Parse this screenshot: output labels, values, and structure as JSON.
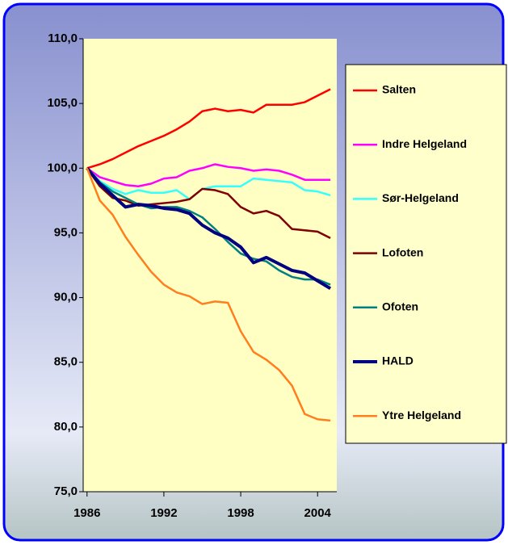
{
  "chart_data": {
    "type": "line",
    "x": [
      1986,
      1987,
      1988,
      1989,
      1990,
      1991,
      1992,
      1993,
      1994,
      1995,
      1996,
      1997,
      1998,
      1999,
      2000,
      2001,
      2002,
      2003,
      2004,
      2005
    ],
    "xlim": [
      1985.7,
      2005.5
    ],
    "xticks": [
      1986,
      1992,
      1998,
      2004
    ],
    "ylim": [
      75,
      110
    ],
    "yticks": [
      {
        "value": 75,
        "label": "75,0"
      },
      {
        "value": 80,
        "label": "80,0"
      },
      {
        "value": 85,
        "label": "85,0"
      },
      {
        "value": 90,
        "label": "90,0"
      },
      {
        "value": 95,
        "label": "95,0"
      },
      {
        "value": 100,
        "label": "100,0"
      },
      {
        "value": 105,
        "label": "105,0"
      },
      {
        "value": 110,
        "label": "110,0"
      }
    ],
    "legend": "right",
    "series": [
      {
        "name": "Salten",
        "color": "#ff0000",
        "values": [
          100,
          100.3,
          100.7,
          101.2,
          101.7,
          102.1,
          102.5,
          103.0,
          103.6,
          104.4,
          104.6,
          104.4,
          104.5,
          104.3,
          104.9,
          104.9,
          104.9,
          105.1,
          105.6,
          106.1
        ]
      },
      {
        "name": "Indre Helgeland",
        "color": "#ff00ff",
        "values": [
          100,
          99.3,
          99.0,
          98.7,
          98.6,
          98.8,
          99.2,
          99.3,
          99.8,
          100.0,
          100.3,
          100.1,
          100.0,
          99.8,
          99.9,
          99.8,
          99.5,
          99.1,
          99.1,
          99.1
        ]
      },
      {
        "name": "Sør-Helgeland",
        "color": "#33ffff",
        "values": [
          100,
          99.0,
          98.4,
          98.0,
          98.3,
          98.1,
          98.1,
          98.3,
          97.6,
          98.4,
          98.6,
          98.6,
          98.6,
          99.2,
          99.1,
          99.0,
          98.9,
          98.3,
          98.2,
          97.9
        ]
      },
      {
        "name": "Lofoten",
        "color": "#800000",
        "values": [
          100,
          98.6,
          97.7,
          97.5,
          97.1,
          97.2,
          97.3,
          97.4,
          97.6,
          98.4,
          98.3,
          98.0,
          97.0,
          96.5,
          96.7,
          96.3,
          95.3,
          95.2,
          95.1,
          94.6
        ]
      },
      {
        "name": "Ofoten",
        "color": "#008080",
        "values": [
          100,
          98.9,
          98.2,
          97.7,
          97.2,
          96.9,
          97.0,
          97.0,
          96.7,
          96.2,
          95.3,
          94.3,
          93.4,
          93.0,
          92.8,
          92.1,
          91.6,
          91.4,
          91.4,
          91.0
        ]
      },
      {
        "name": "HALD",
        "color": "#000080",
        "values": [
          100,
          98.8,
          97.9,
          97.0,
          97.2,
          97.1,
          96.9,
          96.8,
          96.5,
          95.6,
          95.0,
          94.6,
          93.9,
          92.7,
          93.1,
          92.6,
          92.1,
          91.9,
          91.3,
          90.7
        ]
      },
      {
        "name": "Ytre Helgeland",
        "color": "#ff7f1e",
        "values": [
          100,
          97.5,
          96.4,
          94.7,
          93.3,
          92.0,
          91.0,
          90.4,
          90.1,
          89.5,
          89.7,
          89.6,
          87.4,
          85.8,
          85.2,
          84.4,
          83.2,
          81.0,
          80.6,
          80.5
        ]
      }
    ]
  }
}
